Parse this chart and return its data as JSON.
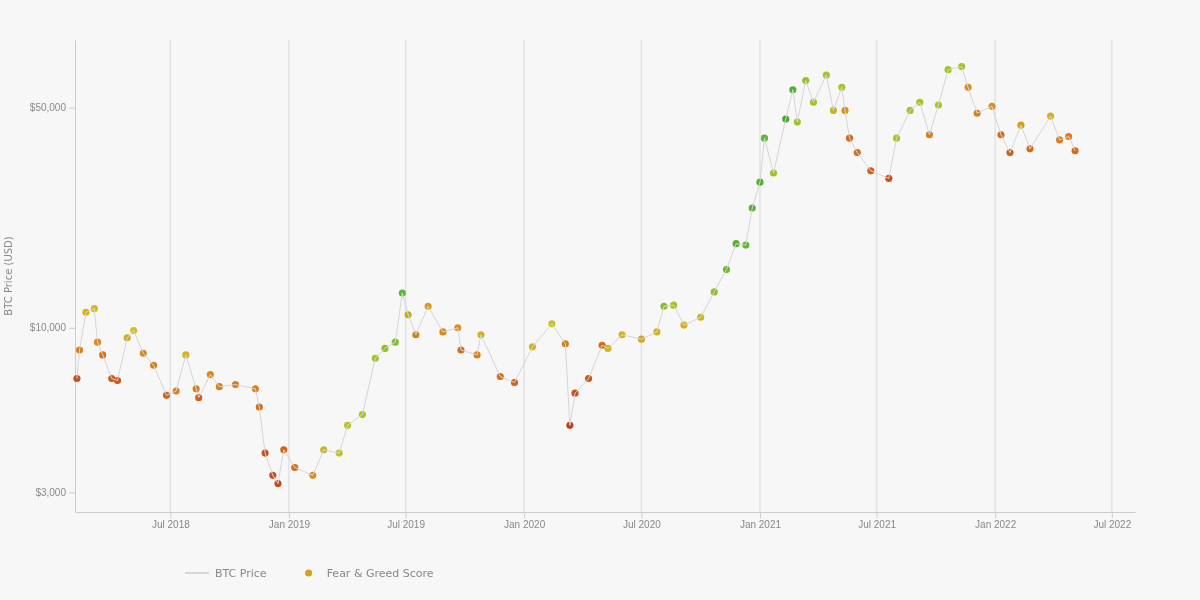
{
  "chart_data": {
    "type": "scatter",
    "ylabel": "BTC Price (USD)",
    "log": "y",
    "grid": "x",
    "legend": "bottom",
    "marker": "circle",
    "xlim": [
      "2018-02-03",
      "2022-08-06"
    ],
    "xticks": [
      {
        "value": "2018-07-01",
        "label": "Jul 2018"
      },
      {
        "value": "2019-01-01",
        "label": "Jan 2019"
      },
      {
        "value": "2019-07-01",
        "label": "Jul 2019"
      },
      {
        "value": "2020-01-01",
        "label": "Jan 2020"
      },
      {
        "value": "2020-07-01",
        "label": "Jul 2020"
      },
      {
        "value": "2021-01-01",
        "label": "Jan 2021"
      },
      {
        "value": "2021-07-01",
        "label": "Jul 2021"
      },
      {
        "value": "2022-01-01",
        "label": "Jan 2022"
      },
      {
        "value": "2022-07-01",
        "label": "Jul 2022"
      }
    ],
    "ylim": [
      2600,
      82000
    ],
    "yticks": [
      {
        "value": 3000,
        "label": "$3,000"
      },
      {
        "value": 10000,
        "label": "$10,000"
      },
      {
        "value": 50000,
        "label": "$50,000"
      }
    ],
    "x": [
      "2018-02-06",
      "2018-02-10",
      "2018-02-20",
      "2018-03-05",
      "2018-03-10",
      "2018-03-18",
      "2018-04-01",
      "2018-04-10",
      "2018-04-25",
      "2018-05-05",
      "2018-05-20",
      "2018-06-05",
      "2018-06-25",
      "2018-07-10",
      "2018-07-25",
      "2018-08-10",
      "2018-08-14",
      "2018-09-01",
      "2018-09-15",
      "2018-10-10",
      "2018-11-10",
      "2018-11-16",
      "2018-11-25",
      "2018-12-07",
      "2018-12-15",
      "2018-12-24",
      "2019-01-10",
      "2019-02-07",
      "2019-02-24",
      "2019-03-20",
      "2019-04-02",
      "2019-04-25",
      "2019-05-15",
      "2019-05-30",
      "2019-06-15",
      "2019-06-26",
      "2019-07-05",
      "2019-07-17",
      "2019-08-05",
      "2019-08-28",
      "2019-09-20",
      "2019-09-25",
      "2019-10-20",
      "2019-10-26",
      "2019-11-25",
      "2019-12-17",
      "2020-01-14",
      "2020-02-13",
      "2020-03-05",
      "2020-03-12",
      "2020-03-20",
      "2020-04-10",
      "2020-05-01",
      "2020-05-10",
      "2020-06-01",
      "2020-07-01",
      "2020-07-25",
      "2020-08-05",
      "2020-08-20",
      "2020-09-05",
      "2020-10-01",
      "2020-10-22",
      "2020-11-10",
      "2020-11-25",
      "2020-12-10",
      "2020-12-20",
      "2021-01-01",
      "2021-01-08",
      "2021-01-22",
      "2021-02-10",
      "2021-02-21",
      "2021-02-28",
      "2021-03-13",
      "2021-03-25",
      "2021-04-14",
      "2021-04-25",
      "2021-05-08",
      "2021-05-13",
      "2021-05-20",
      "2021-06-01",
      "2021-06-22",
      "2021-07-20",
      "2021-08-01",
      "2021-08-22",
      "2021-09-06",
      "2021-09-21",
      "2021-10-05",
      "2021-10-20",
      "2021-11-10",
      "2021-11-20",
      "2021-12-04",
      "2021-12-27",
      "2022-01-10",
      "2022-01-24",
      "2022-02-10",
      "2022-02-24",
      "2022-03-28",
      "2022-04-11",
      "2022-04-25",
      "2022-05-05"
    ],
    "series": [
      {
        "name": "BTC Price",
        "type": "line",
        "marker": "none",
        "color": "#d6d6d6",
        "values": [
          6900,
          8500,
          11200,
          11500,
          9000,
          8200,
          6900,
          6800,
          9300,
          9800,
          8300,
          7600,
          6100,
          6300,
          8200,
          6400,
          6000,
          7100,
          6500,
          6600,
          6400,
          5600,
          4000,
          3400,
          3200,
          4100,
          3600,
          3400,
          4100,
          4000,
          4900,
          5300,
          8000,
          8600,
          9000,
          12900,
          11000,
          9500,
          11700,
          9700,
          10000,
          8500,
          8200,
          9500,
          7000,
          6700,
          8700,
          10300,
          8900,
          4900,
          6200,
          6900,
          8800,
          8600,
          9500,
          9200,
          9700,
          11700,
          11800,
          10200,
          10800,
          13000,
          15300,
          18500,
          18300,
          24000,
          29000,
          40000,
          31000,
          46000,
          57000,
          45000,
          61000,
          52000,
          63500,
          49000,
          58000,
          49000,
          40000,
          36000,
          31500,
          29800,
          40000,
          49000,
          52000,
          41000,
          51000,
          66000,
          67500,
          58000,
          48000,
          50500,
          41000,
          36000,
          44000,
          37000,
          47000,
          39500,
          40500,
          36500
        ]
      },
      {
        "name": "Fear & Greed Score",
        "color": "#d9a01e",
        "values": [
          6900,
          8500,
          11200,
          11500,
          9000,
          8200,
          6900,
          6800,
          9300,
          9800,
          8300,
          7600,
          6100,
          6300,
          8200,
          6400,
          6000,
          7100,
          6500,
          6600,
          6400,
          5600,
          4000,
          3400,
          3200,
          4100,
          3600,
          3400,
          4100,
          4000,
          4900,
          5300,
          8000,
          8600,
          9000,
          12900,
          11000,
          9500,
          11700,
          9700,
          10000,
          8500,
          8200,
          9500,
          7000,
          6700,
          8700,
          10300,
          8900,
          4900,
          6200,
          6900,
          8800,
          8600,
          9500,
          9200,
          9700,
          11700,
          11800,
          10200,
          10800,
          13000,
          15300,
          18500,
          18300,
          24000,
          29000,
          40000,
          31000,
          46000,
          57000,
          45000,
          61000,
          52000,
          63500,
          49000,
          58000,
          49000,
          40000,
          36000,
          31500,
          29800,
          40000,
          49000,
          52000,
          41000,
          51000,
          66000,
          67500,
          58000,
          48000,
          50500,
          41000,
          36000,
          44000,
          37000,
          47000,
          39500,
          40500,
          36500
        ],
        "colors": [
          "#c8501e",
          "#d9801e",
          "#d4b21e",
          "#d9b81e",
          "#d98a1e",
          "#d9701e",
          "#d0581e",
          "#cc561e",
          "#d9a81e",
          "#d4c01e",
          "#d98a1e",
          "#d9801e",
          "#d0601e",
          "#d9801e",
          "#d4b21e",
          "#d9801e",
          "#d0601e",
          "#d98a1e",
          "#d9801e",
          "#d9801e",
          "#d9801e",
          "#d07020",
          "#c8501e",
          "#c8501e",
          "#c4481c",
          "#d0641e",
          "#d0701e",
          "#d8901e",
          "#c8b81e",
          "#c0c420",
          "#b8c420",
          "#b0c420",
          "#a0c428",
          "#90c028",
          "#80c030",
          "#58b830",
          "#c0b020",
          "#d9801e",
          "#d99a1e",
          "#d98a1e",
          "#d9901e",
          "#d0701e",
          "#d9801e",
          "#d4b21e",
          "#d0701e",
          "#d0601e",
          "#d4b21e",
          "#c8c020",
          "#d0801e",
          "#c0401c",
          "#c8501e",
          "#cc581e",
          "#d0701e",
          "#d4b21e",
          "#d4b21e",
          "#d4a81e",
          "#d4b21e",
          "#88c028",
          "#a0c428",
          "#d4b21e",
          "#d4b21e",
          "#90c028",
          "#70b830",
          "#58b030",
          "#60b830",
          "#58b030",
          "#50b030",
          "#60b830",
          "#a0c428",
          "#48a830",
          "#50b030",
          "#a0c428",
          "#90c028",
          "#a0c428",
          "#a8c428",
          "#c0b820",
          "#a8c428",
          "#d9901e",
          "#d06a1e",
          "#d0701e",
          "#d0601e",
          "#c8501e",
          "#a8c428",
          "#a0c428",
          "#b0c024",
          "#d9801e",
          "#a8c428",
          "#a0c428",
          "#b0c020",
          "#d9901e",
          "#d9801e",
          "#d9901e",
          "#d0701e",
          "#c8601e",
          "#d4a01e",
          "#d0701e",
          "#d4b21e",
          "#d9801e",
          "#d9801e",
          "#d0701e"
        ]
      }
    ]
  }
}
